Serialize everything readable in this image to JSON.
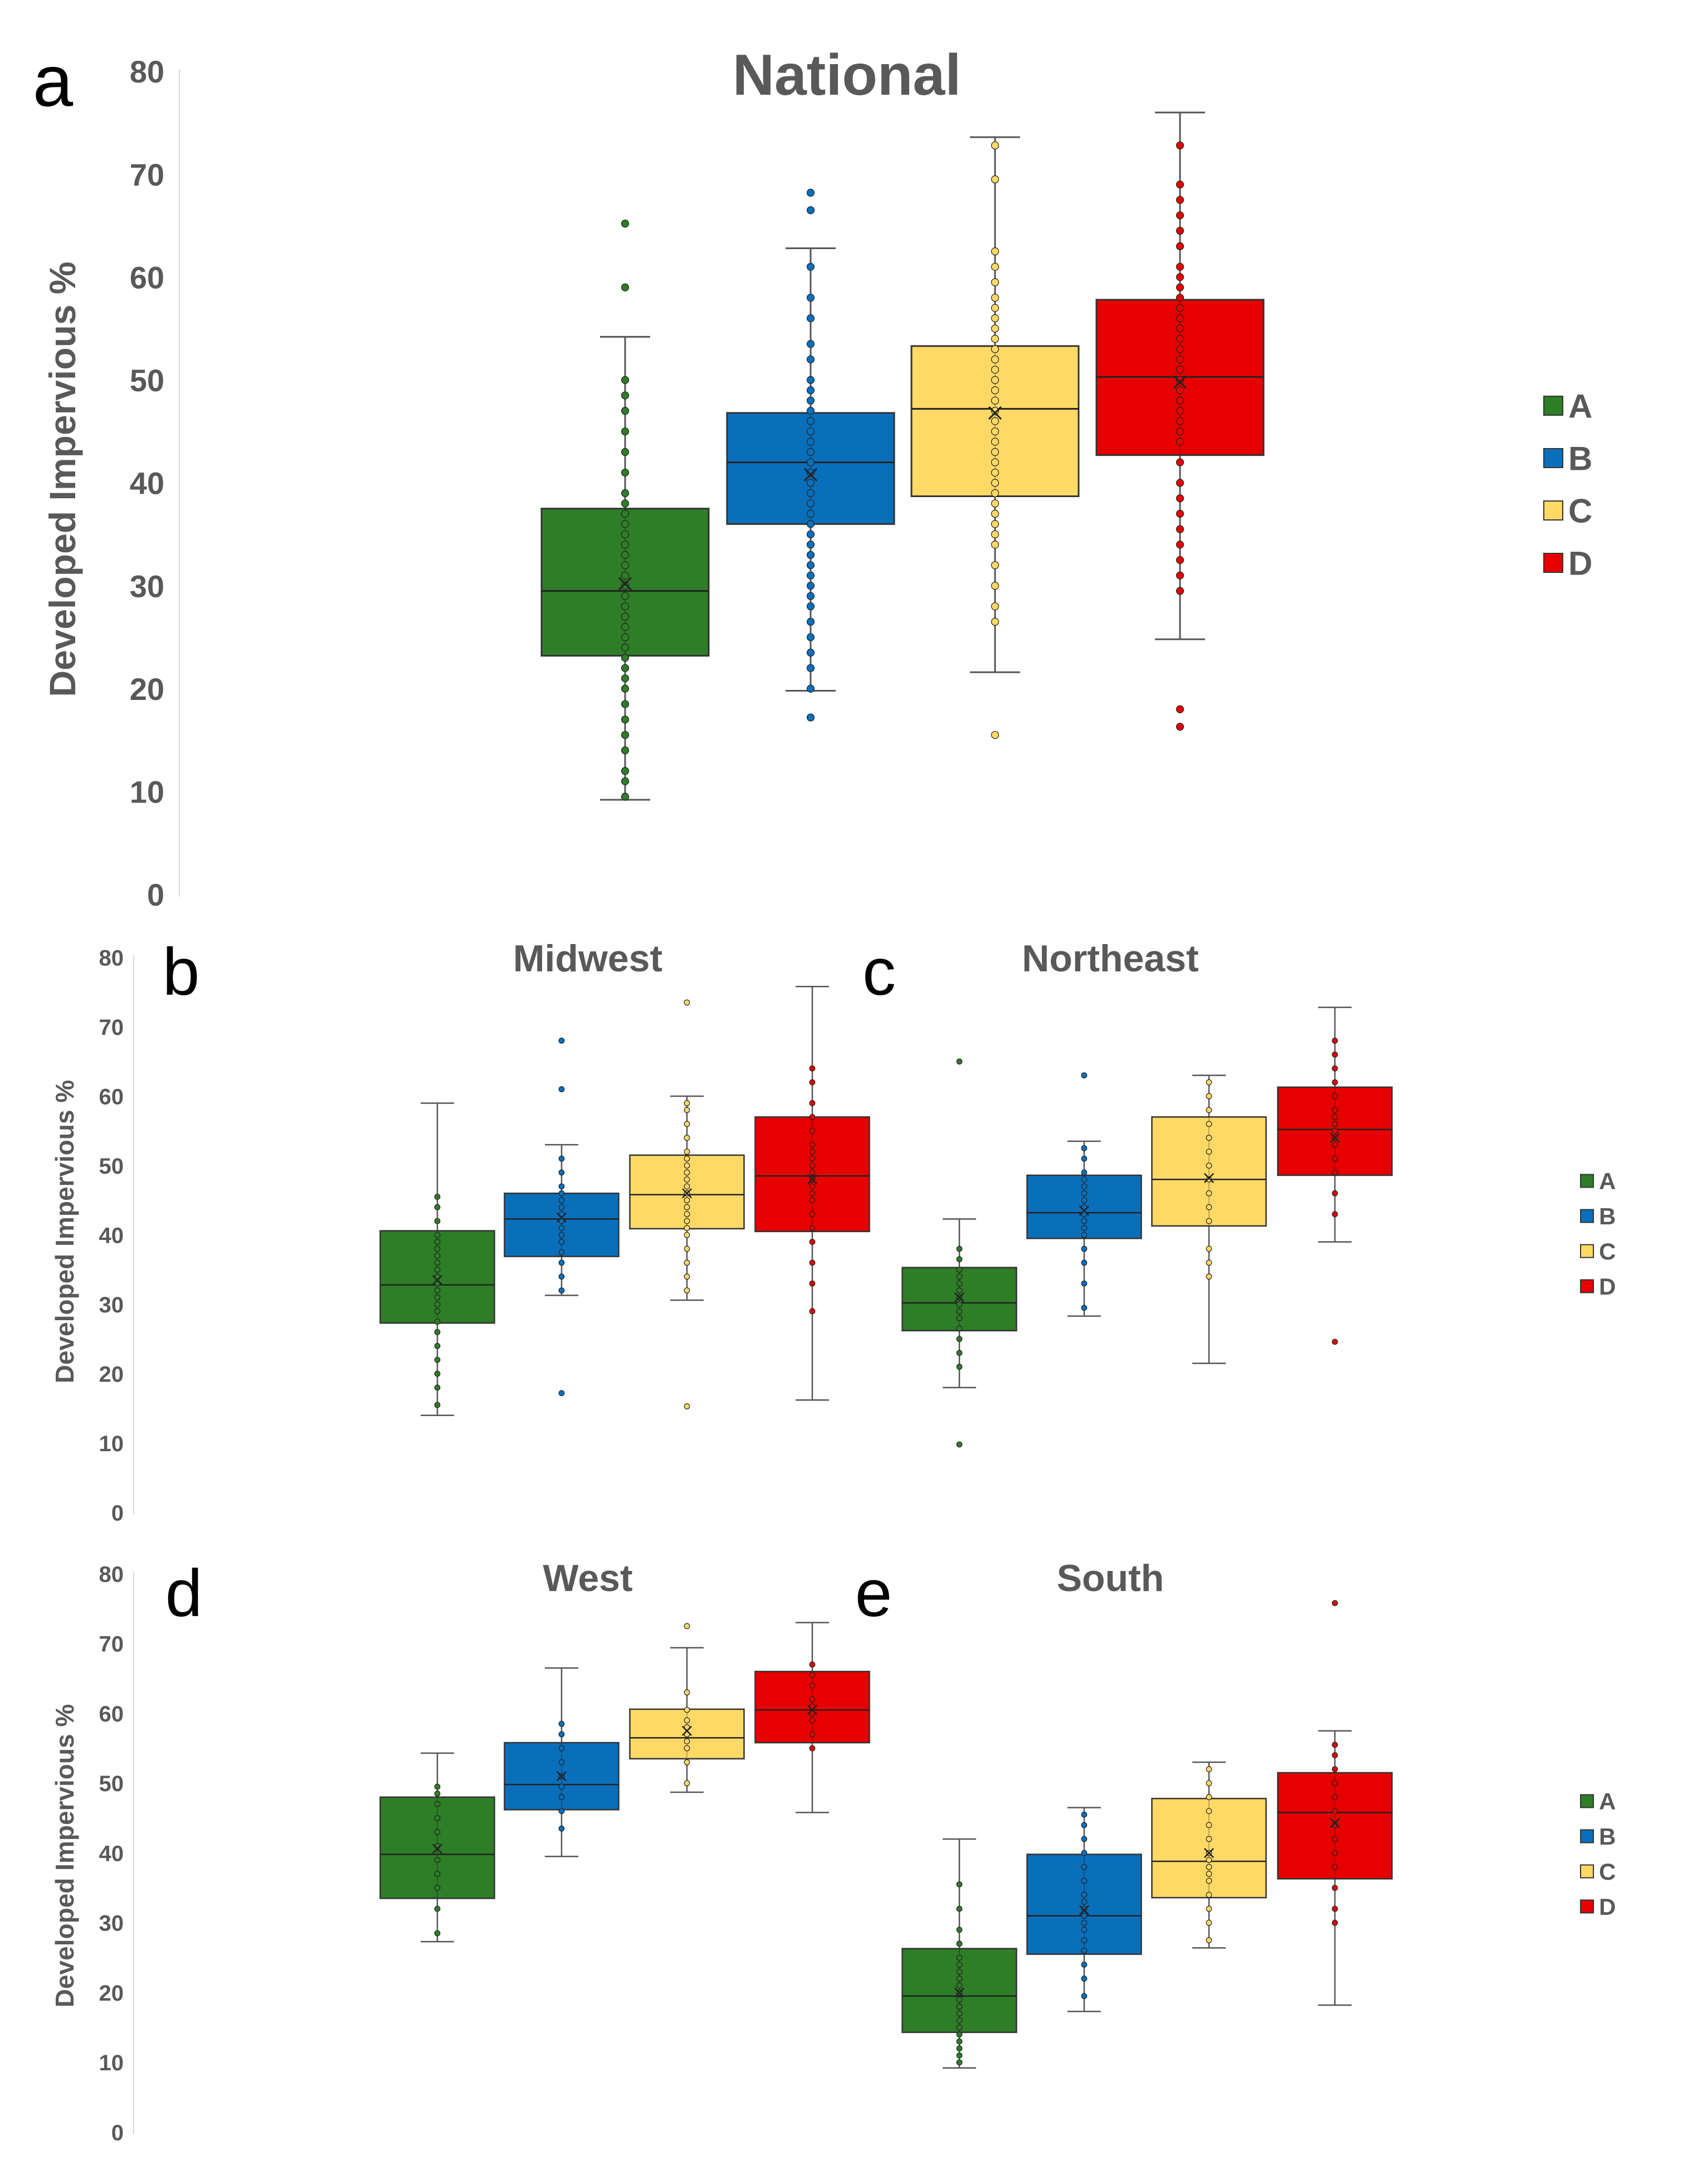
{
  "colors": {
    "A": "#2e7d27",
    "B": "#0a6fba",
    "C": "#ffd966",
    "D": "#e60000",
    "text": "#595959"
  },
  "chart_data": [
    {
      "type": "box",
      "panel": "a",
      "title": "National",
      "ylabel": "Developed Impervious %",
      "ylim": [
        0,
        80
      ],
      "yticks": [
        "0",
        "10",
        "20",
        "30",
        "40",
        "50",
        "60",
        "70",
        "80"
      ],
      "legend": [
        "A",
        "B",
        "C",
        "D"
      ],
      "series": [
        {
          "name": "A",
          "min": 9.2,
          "q1": 23.2,
          "median": 29.5,
          "q3": 37.5,
          "max": 54.2,
          "mean": 30.2,
          "outliers": [
            59.0,
            65.2
          ],
          "points": [
            9.5,
            11,
            12,
            14,
            15.5,
            17,
            18.5,
            20,
            21,
            22,
            23,
            24,
            25,
            26,
            27,
            28,
            29,
            30,
            31,
            32,
            33,
            34,
            35,
            36,
            37,
            38,
            39,
            41,
            43,
            45,
            47,
            48.5,
            50
          ]
        },
        {
          "name": "B",
          "min": 19.8,
          "q1": 36.0,
          "median": 42.0,
          "q3": 46.8,
          "max": 62.8,
          "mean": 40.8,
          "outliers": [
            17.2,
            66.5,
            68.2
          ],
          "points": [
            20,
            22,
            23.5,
            25,
            26.5,
            28,
            29,
            30,
            31,
            32,
            33,
            34,
            35,
            36,
            37,
            38,
            39,
            40,
            41,
            42,
            43,
            44,
            45,
            46,
            47,
            48,
            49,
            50,
            52,
            53.5,
            56,
            58,
            61
          ]
        },
        {
          "name": "C",
          "min": 21.6,
          "q1": 38.7,
          "median": 47.2,
          "q3": 53.3,
          "max": 73.6,
          "mean": 46.8,
          "outliers": [
            15.5
          ],
          "points": [
            26.5,
            28,
            30,
            32,
            34,
            35,
            36,
            37,
            38,
            39,
            40,
            41,
            42,
            43,
            44,
            45,
            46,
            47,
            48,
            49,
            50,
            51,
            52,
            53,
            54,
            55,
            56,
            57,
            58,
            59.5,
            61,
            62.5,
            69.5,
            72.8
          ]
        },
        {
          "name": "D",
          "min": 24.8,
          "q1": 42.7,
          "median": 50.3,
          "q3": 57.8,
          "max": 76.0,
          "mean": 49.8,
          "outliers": [
            16.3,
            18.0
          ],
          "points": [
            29.5,
            31,
            32.5,
            34,
            35.5,
            37,
            38.5,
            40,
            42,
            44,
            45,
            46,
            47,
            48,
            49,
            50,
            51,
            52,
            53,
            54,
            55,
            56,
            57,
            58,
            59,
            60,
            61,
            63,
            64.5,
            66,
            67.5,
            69,
            72.8
          ]
        }
      ]
    },
    {
      "type": "box",
      "panel": "b",
      "title": "Midwest",
      "ylabel": "Developed Impervious %",
      "ylim": [
        0,
        80
      ],
      "yticks": [
        "0",
        "10",
        "20",
        "30",
        "40",
        "50",
        "60",
        "70",
        "80"
      ],
      "series": [
        {
          "name": "A",
          "min": 14.0,
          "q1": 27.3,
          "median": 32.8,
          "q3": 40.6,
          "max": 59.0,
          "mean": 33.5,
          "outliers": [],
          "points": [
            15.5,
            18,
            20,
            22,
            24,
            26,
            27.5,
            29,
            30,
            31,
            32,
            33,
            34,
            35,
            36,
            37,
            38,
            39,
            40,
            42,
            44,
            45.5
          ]
        },
        {
          "name": "B",
          "min": 31.3,
          "q1": 36.9,
          "median": 42.3,
          "q3": 46.0,
          "max": 53.0,
          "mean": 42.5,
          "outliers": [
            17.2,
            61.0,
            68.0
          ],
          "points": [
            32,
            34,
            36,
            37.5,
            39,
            40,
            41,
            42,
            43,
            44,
            45,
            46,
            47,
            49,
            51
          ]
        },
        {
          "name": "C",
          "min": 30.6,
          "q1": 40.9,
          "median": 45.8,
          "q3": 51.5,
          "max": 60.0,
          "mean": 46.0,
          "outliers": [
            15.3,
            73.5
          ],
          "points": [
            32,
            34,
            36,
            38,
            40,
            41,
            42,
            43,
            44,
            45,
            46,
            47,
            48,
            49,
            50,
            51,
            52,
            54,
            56,
            58,
            59
          ]
        },
        {
          "name": "D",
          "min": 16.2,
          "q1": 40.5,
          "median": 48.5,
          "q3": 57.0,
          "max": 75.8,
          "mean": 48.0,
          "outliers": [],
          "points": [
            29,
            33,
            36,
            39,
            41,
            43,
            45,
            46,
            47,
            48,
            49,
            50,
            51,
            52,
            53,
            55,
            57,
            59,
            62,
            64
          ]
        }
      ]
    },
    {
      "type": "box",
      "panel": "c",
      "title": "Northeast",
      "ylim": [
        0,
        80
      ],
      "legend": [
        "A",
        "B",
        "C",
        "D"
      ],
      "series": [
        {
          "name": "A",
          "min": 18.0,
          "q1": 26.2,
          "median": 30.2,
          "q3": 35.3,
          "max": 42.3,
          "mean": 31.0,
          "outliers": [
            9.8,
            65.0
          ],
          "points": [
            21,
            23,
            25,
            26.5,
            28,
            29,
            30,
            31,
            32,
            33,
            34,
            35,
            36.5,
            38
          ]
        },
        {
          "name": "B",
          "min": 28.3,
          "q1": 39.5,
          "median": 43.2,
          "q3": 48.6,
          "max": 53.5,
          "mean": 43.5,
          "outliers": [
            63.0
          ],
          "points": [
            29.5,
            33,
            36,
            38,
            40,
            41,
            42,
            43,
            44,
            45,
            46,
            47,
            48,
            49,
            51,
            52.5
          ]
        },
        {
          "name": "C",
          "min": 21.5,
          "q1": 41.3,
          "median": 48.0,
          "q3": 57.0,
          "max": 63.0,
          "mean": 48.2,
          "outliers": [],
          "points": [
            34,
            36,
            38,
            42,
            44,
            46,
            48,
            50,
            52,
            54,
            56,
            58,
            60,
            62
          ]
        },
        {
          "name": "D",
          "min": 39.0,
          "q1": 48.6,
          "median": 55.2,
          "q3": 61.3,
          "max": 72.8,
          "mean": 54.0,
          "outliers": [
            24.6
          ],
          "points": [
            43,
            46,
            49,
            51,
            53,
            54,
            55,
            56,
            57,
            58,
            60,
            62,
            64,
            66,
            68
          ]
        }
      ]
    },
    {
      "type": "box",
      "panel": "d",
      "title": "West",
      "ylabel": "Developed Impervious %",
      "ylim": [
        0,
        80
      ],
      "yticks": [
        "0",
        "10",
        "20",
        "30",
        "40",
        "50",
        "60",
        "70",
        "80"
      ],
      "series": [
        {
          "name": "A",
          "min": 27.3,
          "q1": 33.5,
          "median": 39.8,
          "q3": 48.0,
          "max": 54.3,
          "mean": 40.6,
          "outliers": [],
          "points": [
            28.5,
            32,
            35,
            37,
            39,
            41,
            43,
            45,
            47,
            48.5,
            49.5
          ]
        },
        {
          "name": "B",
          "min": 39.5,
          "q1": 46.2,
          "median": 49.8,
          "q3": 55.8,
          "max": 66.5,
          "mean": 51.0,
          "outliers": [],
          "points": [
            43.5,
            46,
            48,
            49.5,
            51,
            53,
            55,
            57,
            58.5
          ]
        },
        {
          "name": "C",
          "min": 48.7,
          "q1": 53.5,
          "median": 56.5,
          "q3": 60.6,
          "max": 69.4,
          "mean": 57.5,
          "outliers": [
            72.5
          ],
          "points": [
            50,
            53,
            55,
            56,
            57,
            58,
            59,
            60.5,
            63
          ]
        },
        {
          "name": "D",
          "min": 45.8,
          "q1": 55.8,
          "median": 60.5,
          "q3": 66.0,
          "max": 73.0,
          "mean": 60.5,
          "outliers": [],
          "points": [
            55,
            57,
            59,
            60,
            61,
            62,
            64,
            65.5,
            67
          ]
        }
      ]
    },
    {
      "type": "box",
      "panel": "e",
      "title": "South",
      "ylim": [
        0,
        80
      ],
      "legend": [
        "A",
        "B",
        "C",
        "D"
      ],
      "series": [
        {
          "name": "A",
          "min": 9.2,
          "q1": 14.3,
          "median": 19.5,
          "q3": 26.3,
          "max": 42.0,
          "mean": 20.0,
          "outliers": [],
          "points": [
            10,
            11,
            12,
            13,
            14,
            15,
            16,
            17,
            18,
            19,
            20,
            21,
            22,
            23,
            24,
            25,
            27,
            29,
            32,
            35.5
          ]
        },
        {
          "name": "B",
          "min": 17.3,
          "q1": 25.5,
          "median": 31.0,
          "q3": 39.8,
          "max": 46.5,
          "mean": 31.8,
          "outliers": [],
          "points": [
            19.5,
            22,
            24,
            26,
            27.5,
            29,
            30,
            31,
            32,
            33,
            34,
            36,
            38,
            40,
            42,
            44,
            45.5
          ]
        },
        {
          "name": "C",
          "min": 26.4,
          "q1": 33.6,
          "median": 38.8,
          "q3": 47.8,
          "max": 53.0,
          "mean": 40.0,
          "outliers": [],
          "points": [
            27.5,
            30,
            32,
            34,
            36,
            37,
            38,
            39,
            40,
            42,
            44,
            46,
            48,
            50,
            52
          ]
        },
        {
          "name": "D",
          "min": 18.2,
          "q1": 36.3,
          "median": 45.8,
          "q3": 51.5,
          "max": 57.5,
          "mean": 44.3,
          "outliers": [
            75.8
          ],
          "points": [
            30,
            32,
            35,
            38,
            40,
            42,
            44,
            46,
            48,
            50,
            52,
            54,
            55.5
          ]
        }
      ]
    }
  ]
}
